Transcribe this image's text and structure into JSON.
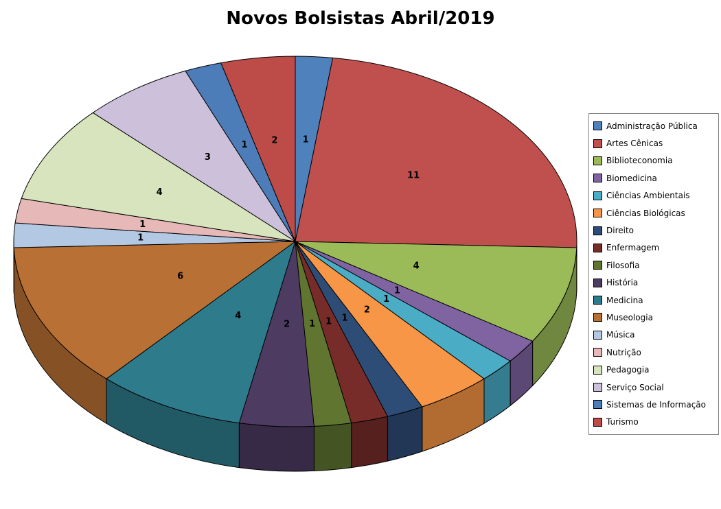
{
  "chart_data": {
    "type": "pie",
    "title": "Novos Bolsistas Abril/2019",
    "legend_position": "right",
    "style": "3d",
    "categories": [
      "Administração Pública",
      "Artes Cênicas",
      "Biblioteconomia",
      "Biomedicina",
      "Ciências Ambientais",
      "Ciências Biológicas",
      "Direito",
      "Enfermagem",
      "Filosofia",
      "História",
      "Medicina",
      "Museologia",
      "Música",
      "Nutrição",
      "Pedagogia",
      "Serviço Social",
      "Sistemas de Informação",
      "Turismo"
    ],
    "values": [
      1,
      11,
      4,
      1,
      1,
      2,
      1,
      1,
      1,
      2,
      4,
      6,
      1,
      1,
      4,
      3,
      1,
      2
    ],
    "colors": [
      "#4F81BD",
      "#C0504D",
      "#9BBB59",
      "#8064A2",
      "#4BACC6",
      "#F79646",
      "#2E4D76",
      "#772C2A",
      "#5F7530",
      "#4D3B62",
      "#2E7B8C",
      "#B97034",
      "#B2C8E3",
      "#E6B9B8",
      "#D7E4BD",
      "#CCC0DA",
      "#4C7DB8",
      "#BD4B47"
    ]
  }
}
